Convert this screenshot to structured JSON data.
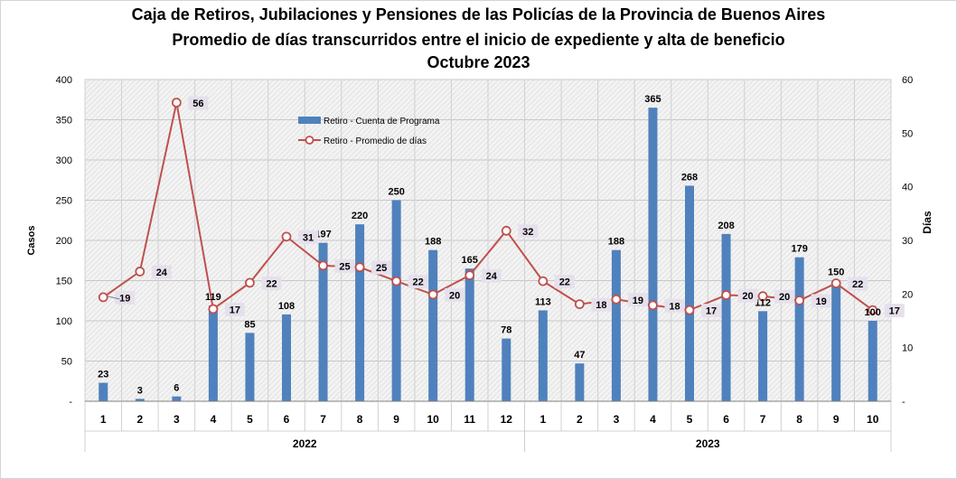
{
  "chart_data": {
    "type": "bar+line",
    "title": [
      "Caja de Retiros, Jubilaciones y Pensiones de las Policías de la Provincia de Buenos Aires",
      "Promedio de días transcurridos  entre el inicio de expediente y alta de beneficio",
      "Octubre 2023"
    ],
    "ylabel_left": "Casos",
    "ylabel_right": "Días",
    "ylim_left": [
      0,
      400
    ],
    "ylim_right": [
      0,
      60
    ],
    "yticks_left": [
      "-",
      "50",
      "100",
      "150",
      "200",
      "250",
      "300",
      "350",
      "400"
    ],
    "yticks_right": [
      "-",
      "10",
      "20",
      "30",
      "40",
      "50",
      "60"
    ],
    "categories": [
      "1",
      "2",
      "3",
      "4",
      "5",
      "6",
      "7",
      "8",
      "9",
      "10",
      "11",
      "12",
      "1",
      "2",
      "3",
      "4",
      "5",
      "6",
      "7",
      "8",
      "9",
      "10"
    ],
    "groups": [
      {
        "label": "2022",
        "count": 12
      },
      {
        "label": "2023",
        "count": 10
      }
    ],
    "grid": true,
    "legend_position": "top-left",
    "series": [
      {
        "name": "Retiro - Cuenta de Programa",
        "type": "bar",
        "axis": "left",
        "color": "#4F81BD",
        "values": [
          23,
          3,
          6,
          119,
          85,
          108,
          197,
          220,
          250,
          188,
          165,
          78,
          113,
          47,
          188,
          365,
          268,
          208,
          112,
          179,
          150,
          100
        ]
      },
      {
        "name": "Retiro - Promedio de días",
        "type": "line",
        "axis": "right",
        "color": "#C0504D",
        "values": [
          19.4,
          24.2,
          55.7,
          17.2,
          22.1,
          30.7,
          25.3,
          25.0,
          22.4,
          19.9,
          23.5,
          31.8,
          22.4,
          18.1,
          19.0,
          17.9,
          17.0,
          19.8,
          19.6,
          18.8,
          22.0,
          17.0
        ],
        "labels": [
          "19",
          "24",
          "56",
          "17",
          "22",
          "31",
          "25",
          "25",
          "22",
          "20",
          "24",
          "32",
          "22",
          "18",
          "19",
          "18",
          "17",
          "20",
          "20",
          "19",
          "22",
          "17"
        ]
      }
    ]
  }
}
